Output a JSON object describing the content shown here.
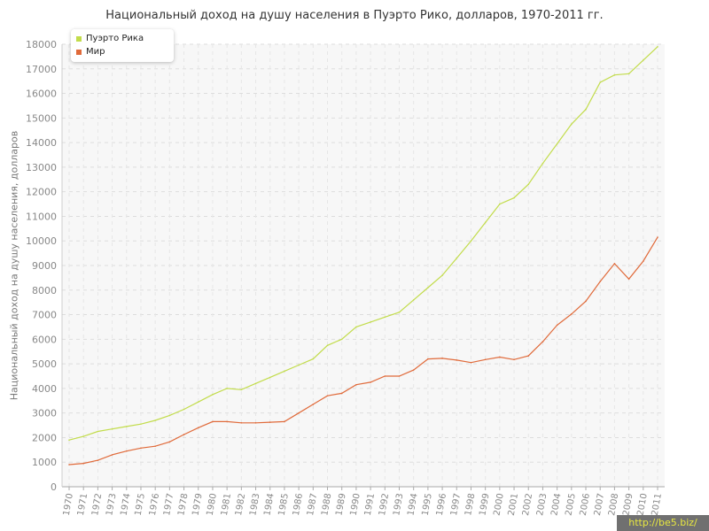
{
  "title": "Национальный доход на душу населения в Пуэрто Рико, долларов, 1970-2011 гг.",
  "watermark": "http://be5.biz/",
  "chart_data": {
    "type": "line",
    "title": "Национальный доход на душу населения в Пуэрто Рико, долларов, 1970-2011 гг.",
    "xlabel": "",
    "ylabel": "Национальный доход на душу населения, долларов",
    "ylim": [
      0,
      18000
    ],
    "yticks": [
      0,
      1000,
      2000,
      3000,
      4000,
      5000,
      6000,
      7000,
      8000,
      9000,
      10000,
      11000,
      12000,
      13000,
      14000,
      15000,
      16000,
      17000,
      18000
    ],
    "grid": true,
    "legend_position": "top-left",
    "x": [
      "1970",
      "1971",
      "1972",
      "1973",
      "1974",
      "1975",
      "1976",
      "1977",
      "1978",
      "1979",
      "1980",
      "1981",
      "1982",
      "1983",
      "1984",
      "1985",
      "1986",
      "1987",
      "1988",
      "1989",
      "1990",
      "1991",
      "1992",
      "1993",
      "1994",
      "1995",
      "1996",
      "1997",
      "1998",
      "1999",
      "2000",
      "2001",
      "2002",
      "2003",
      "2004",
      "2005",
      "2006",
      "2007",
      "2008",
      "2009",
      "2010",
      "2011"
    ],
    "series": [
      {
        "name": "Пуэрто Рика",
        "color": "#c2dc4b",
        "values": [
          1900,
          2050,
          2250,
          2350,
          2450,
          2550,
          2700,
          2900,
          3150,
          3450,
          3750,
          4000,
          3950,
          4200,
          4450,
          4700,
          4950,
          5200,
          5750,
          6000,
          6500,
          6700,
          6900,
          7100,
          7600,
          8100,
          8600,
          9300,
          10000,
          10750,
          11500,
          11750,
          12300,
          13150,
          13950,
          14750,
          15350,
          16450,
          16750,
          16800,
          17350,
          17900
        ]
      },
      {
        "name": "Мир",
        "color": "#e06a3a",
        "values": [
          900,
          950,
          1075,
          1300,
          1450,
          1575,
          1650,
          1825,
          2125,
          2400,
          2650,
          2650,
          2600,
          2600,
          2625,
          2650,
          3000,
          3350,
          3700,
          3800,
          4150,
          4250,
          4500,
          4500,
          4750,
          5200,
          5225,
          5150,
          5050,
          5175,
          5275,
          5175,
          5325,
          5900,
          6575,
          7025,
          7550,
          8350,
          9075,
          8450,
          9175,
          10150
        ]
      }
    ]
  }
}
